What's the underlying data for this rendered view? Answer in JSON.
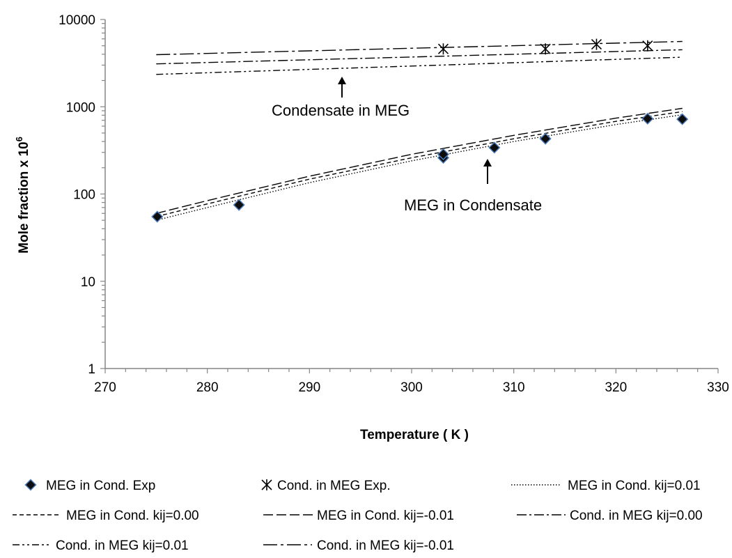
{
  "chart_data": {
    "type": "line",
    "title": "",
    "xlabel": "Temperature ( K )",
    "ylabel": "Mole fraction x 10",
    "ylabel_superscript": "6",
    "xlim": [
      270,
      330
    ],
    "ylim": [
      1,
      10000
    ],
    "yscale": "log",
    "x_ticks": [
      "270",
      "280",
      "290",
      "300",
      "310",
      "320",
      "330"
    ],
    "y_ticks": [
      "1",
      "10",
      "100",
      "1000",
      "10000"
    ],
    "grid": false,
    "legend_position": "bottom",
    "annotations": [
      {
        "text": "Condensate in MEG",
        "points_to": {
          "x": 293.5,
          "y": 2800
        }
      },
      {
        "text": "MEG in Condensate",
        "points_to": {
          "x": 308,
          "y": 380
        }
      }
    ],
    "series": [
      {
        "name": "MEG in Cond. Exp",
        "kind": "marker",
        "marker": "diamond",
        "x": [
          275.1,
          283.1,
          303.1,
          303.1,
          308.1,
          313.1,
          323.1,
          326.5
        ],
        "y": [
          55,
          75,
          260,
          285,
          340,
          430,
          730,
          720
        ]
      },
      {
        "name": "Cond. in MEG Exp.",
        "kind": "marker",
        "marker": "asterisk",
        "x": [
          303.1,
          313.1,
          318.1,
          323.1
        ],
        "y": [
          4600,
          4600,
          5200,
          5000
        ]
      },
      {
        "name": "MEG in Cond. kij=0.01",
        "kind": "line",
        "dash": "dotted",
        "x": [
          275,
          280,
          290,
          300,
          310,
          320,
          326.5
        ],
        "y": [
          50,
          70,
          135,
          240,
          400,
          625,
          810
        ]
      },
      {
        "name": "MEG in Cond. kij=0.00",
        "kind": "line",
        "dash": "dashed",
        "x": [
          275,
          280,
          290,
          300,
          310,
          320,
          326.5
        ],
        "y": [
          55,
          77,
          148,
          260,
          430,
          680,
          880
        ]
      },
      {
        "name": "MEG in Cond. kij=-0.01",
        "kind": "line",
        "dash": "longdash",
        "x": [
          275,
          280,
          290,
          300,
          310,
          320,
          326.5
        ],
        "y": [
          60,
          84,
          160,
          285,
          470,
          740,
          960
        ]
      },
      {
        "name": "Cond. in MEG kij=0.00",
        "kind": "line",
        "dash": "dashdot",
        "x": [
          275,
          326.5
        ],
        "y": [
          3100,
          4500
        ]
      },
      {
        "name": "Cond. in MEG kij=0.01",
        "kind": "line",
        "dash": "dashdotdot",
        "x": [
          275,
          326.5
        ],
        "y": [
          2350,
          3700
        ]
      },
      {
        "name": "Cond. in MEG kij=-0.01",
        "kind": "line",
        "dash": "longdashdot",
        "x": [
          275,
          326.5
        ],
        "y": [
          3950,
          5600
        ]
      }
    ]
  }
}
